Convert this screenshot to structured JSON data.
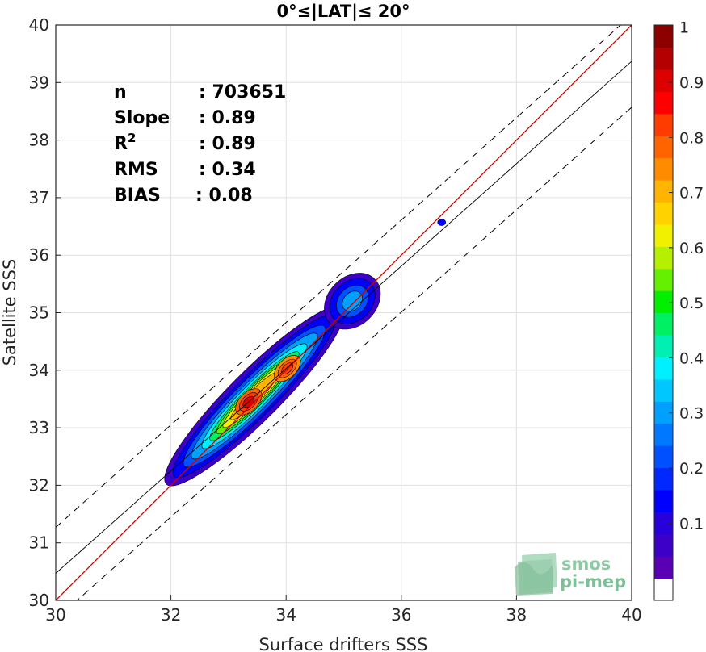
{
  "chart_data": {
    "type": "heatmap",
    "title": "0°≤|LAT|≤ 20°",
    "xlabel": "Surface drifters SSS",
    "ylabel": "Satellite SSS",
    "xlim": [
      30,
      40
    ],
    "ylim": [
      30,
      40
    ],
    "xticks": [
      "30",
      "32",
      "34",
      "36",
      "38",
      "40"
    ],
    "yticks": [
      "30",
      "31",
      "32",
      "33",
      "34",
      "35",
      "36",
      "37",
      "38",
      "39",
      "40"
    ],
    "grid": true,
    "stats": [
      {
        "label": "n",
        "value": ": 703651"
      },
      {
        "label": "Slope",
        "value": ": 0.89"
      },
      {
        "label": "R",
        "sup": "2",
        "value": ": 0.89"
      },
      {
        "label": "RMS",
        "value": ": 0.34"
      },
      {
        "label": "BIAS",
        "value": ": 0.08"
      }
    ],
    "lines": {
      "identity": {
        "color": "#cc0000",
        "x": [
          30,
          40
        ],
        "y": [
          30,
          40
        ]
      },
      "fit": {
        "color": "#000000",
        "x": [
          30,
          40
        ],
        "y": [
          30.47,
          39.37
        ]
      },
      "fit_upper": {
        "color": "#000000",
        "dash": true,
        "x": [
          30,
          40
        ],
        "y": [
          31.27,
          40.17
        ]
      },
      "fit_lower": {
        "color": "#000000",
        "dash": true,
        "x": [
          30,
          40
        ],
        "y": [
          29.67,
          38.57
        ]
      }
    },
    "density_peaks": [
      {
        "x": 33.35,
        "y": 33.45,
        "value": 0.9
      },
      {
        "x": 34.02,
        "y": 34.03,
        "value": 0.85
      },
      {
        "x": 35.15,
        "y": 35.2,
        "value": 0.3
      },
      {
        "x": 36.7,
        "y": 36.57,
        "value": 0.15
      }
    ],
    "colorbar": {
      "range": [
        0,
        1
      ],
      "ticks": [
        "0.1",
        "0.2",
        "0.3",
        "0.4",
        "0.5",
        "0.6",
        "0.7",
        "0.8",
        "0.9",
        "1"
      ],
      "colors": [
        "#ffffff",
        "#5a00b4",
        "#3c00c8",
        "#2800dc",
        "#0000ff",
        "#0028ff",
        "#0050ff",
        "#0078ff",
        "#00a0ff",
        "#00c8ff",
        "#00f0ff",
        "#00f0b4",
        "#00f064",
        "#00f000",
        "#64f000",
        "#b4f000",
        "#f0f000",
        "#ffd200",
        "#ffb400",
        "#ff8c00",
        "#ff6400",
        "#ff3c00",
        "#ff0000",
        "#dc0000",
        "#b40000",
        "#8c0000"
      ]
    }
  },
  "logo": {
    "line1": "smos",
    "line2": "pi-mep"
  }
}
